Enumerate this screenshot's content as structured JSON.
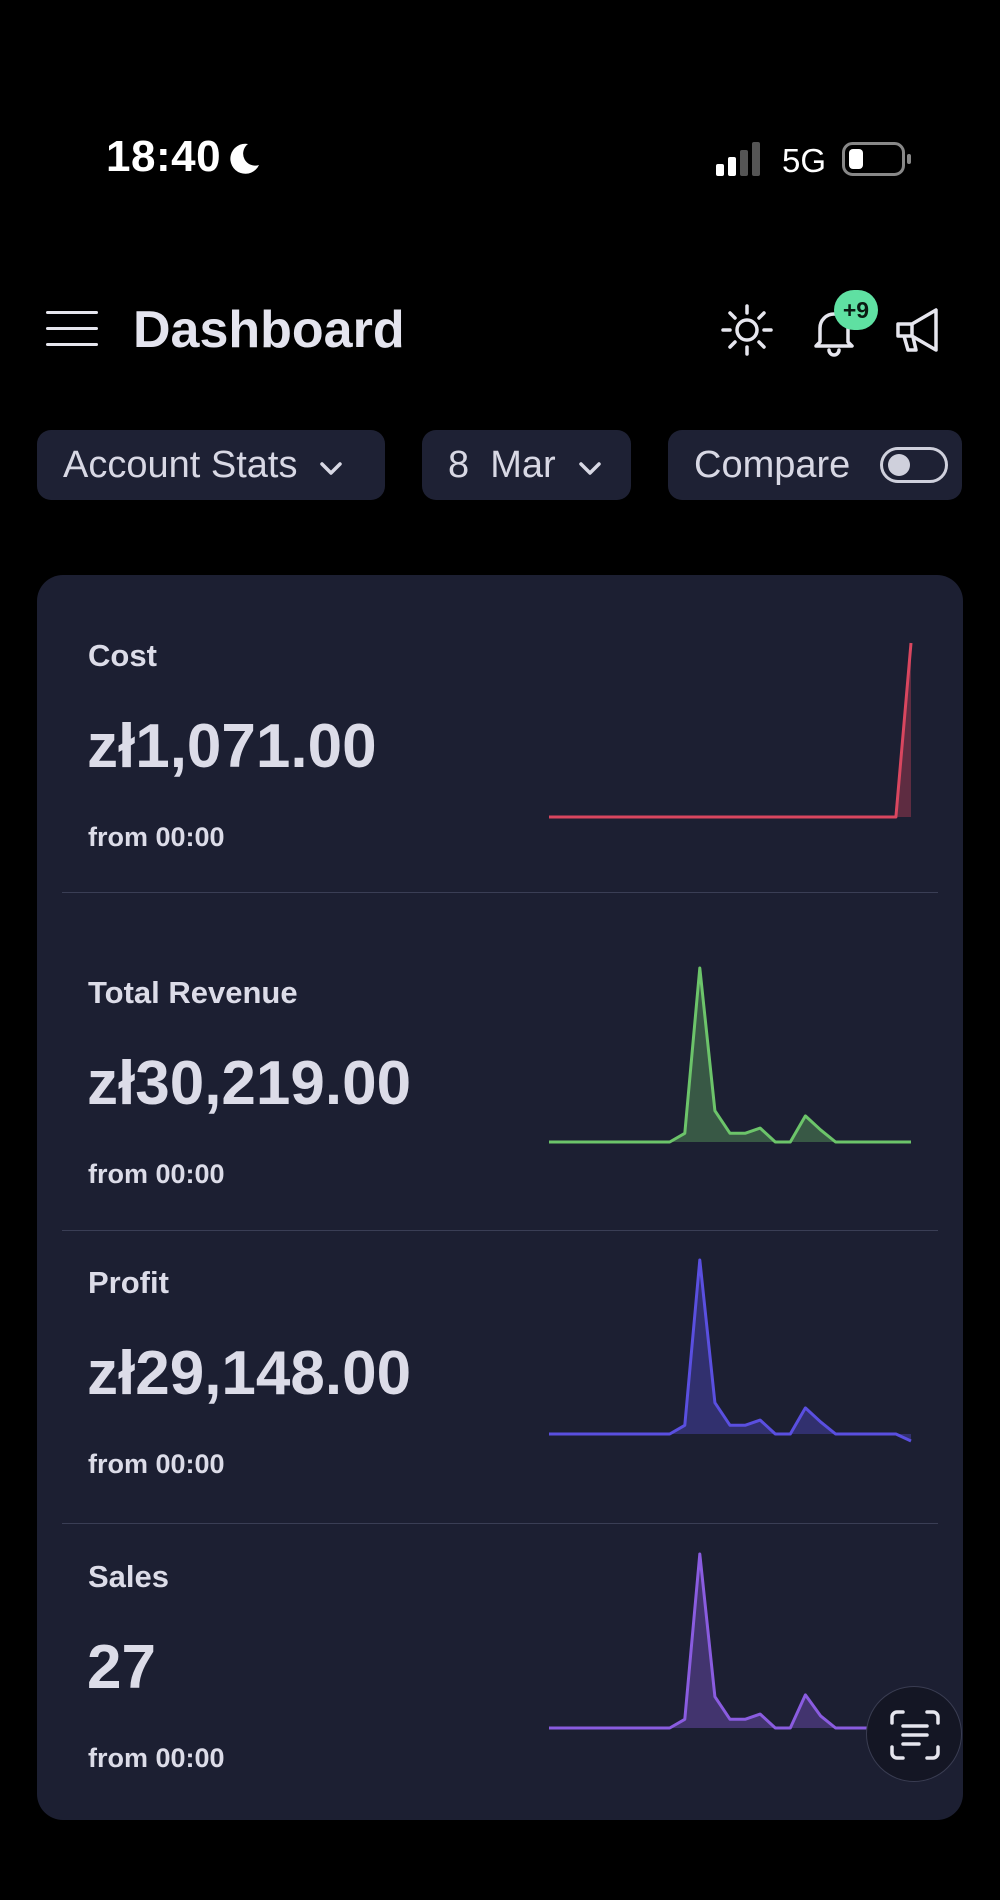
{
  "status_bar": {
    "time": "18:40",
    "network": "5G",
    "icons": [
      "moon-icon",
      "signal-icon",
      "battery-icon"
    ]
  },
  "header": {
    "title": "Dashboard",
    "notification_badge": "+9",
    "icons": [
      "menu-icon",
      "sun-icon",
      "bell-icon",
      "megaphone-icon"
    ]
  },
  "filters": {
    "account": "Account Stats",
    "date": "8  Mar",
    "compare_label": "Compare",
    "compare_enabled": false
  },
  "stats": [
    {
      "label": "Cost",
      "value": "zł1,071.00",
      "sub": "from 00:00",
      "color": "#d9465f"
    },
    {
      "label": "Total Revenue",
      "value": "zł30,219.00",
      "sub": "from 00:00",
      "color": "#6cc46a"
    },
    {
      "label": "Profit",
      "value": "zł29,148.00",
      "sub": "from 00:00",
      "color": "#5a4fe0"
    },
    {
      "label": "Sales",
      "value": "27",
      "sub": "from 00:00",
      "color": "#8a5ce0"
    }
  ],
  "chart_data": [
    {
      "type": "area",
      "series": [
        {
          "values": [
            0,
            0,
            0,
            0,
            0,
            0,
            0,
            0,
            0,
            0,
            0,
            0,
            0,
            0,
            0,
            0,
            0,
            0,
            0,
            0,
            0,
            0,
            0,
            0,
            1071
          ]
        }
      ]
    },
    {
      "type": "area",
      "series": [
        {
          "values": [
            0,
            0,
            0,
            0,
            0,
            0,
            0,
            0,
            0,
            0.5,
            10,
            1.8,
            0.5,
            0.5,
            0.8,
            0,
            0,
            1.5,
            0.7,
            0,
            0,
            0,
            0,
            0,
            0
          ]
        }
      ]
    },
    {
      "type": "area",
      "series": [
        {
          "values": [
            0,
            0,
            0,
            0,
            0,
            0,
            0,
            0,
            0,
            0.5,
            10,
            1.8,
            0.5,
            0.5,
            0.8,
            0,
            0,
            1.5,
            0.7,
            0,
            0,
            0,
            0,
            0,
            -0.4
          ]
        }
      ]
    },
    {
      "type": "area",
      "series": [
        {
          "values": [
            0,
            0,
            0,
            0,
            0,
            0,
            0,
            0,
            0,
            0.5,
            10,
            1.8,
            0.5,
            0.5,
            0.8,
            0,
            0,
            1.9,
            0.7,
            0,
            0,
            0,
            0,
            0,
            0
          ]
        }
      ]
    }
  ],
  "scan_button_icon": "text-scan-icon"
}
